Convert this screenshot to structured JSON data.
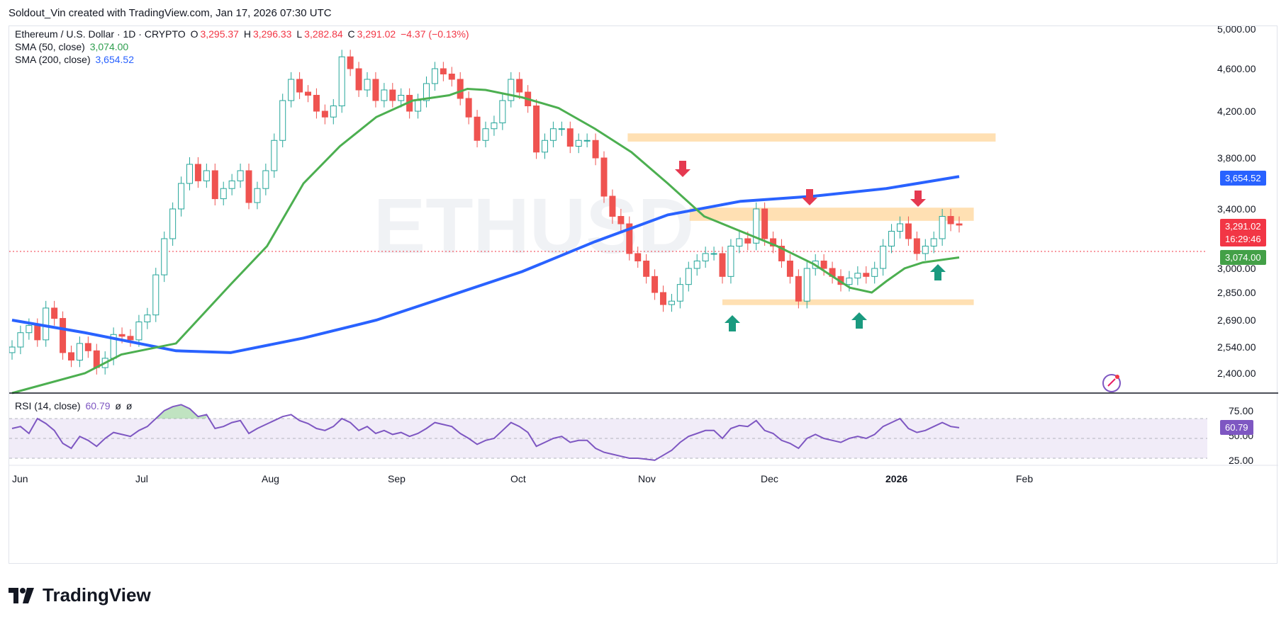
{
  "header": {
    "credit": "Soldout_Vin created with TradingView.com, Jan 17, 2026 07:30 UTC"
  },
  "legend": {
    "symbol": "Ethereum / U.S. Dollar · 1D · CRYPTO",
    "o_key": "O",
    "o_val": "3,295.37",
    "h_key": "H",
    "h_val": "3,296.33",
    "l_key": "L",
    "l_val": "3,282.84",
    "c_key": "C",
    "c_val": "3,291.02",
    "change": "−4.37 (−0.13%)",
    "sma50_label": "SMA (50, close)",
    "sma50_val": "3,074.00",
    "sma200_label": "SMA (200, close)",
    "sma200_val": "3,654.52",
    "rsi_label": "RSI (14, close)",
    "rsi_val": "60.79",
    "rsi_extra1": "ø",
    "rsi_extra2": "ø"
  },
  "watermark": "ETHUSD",
  "badges": {
    "sma200": "3,654.52",
    "price": "3,291.02",
    "countdown": "16:29:46",
    "sma50": "3,074.00",
    "rsi": "60.79"
  },
  "colors": {
    "up": "#26a69a",
    "down": "#ef5350",
    "sma50": "#4caf50",
    "sma200": "#2962ff",
    "rsi": "#7e57c2",
    "zone": "#ffcc80"
  },
  "brand": "TradingView",
  "chart_data": {
    "type": "candlestick",
    "price_axis_ticks": [
      "5,000.00",
      "4,600.00",
      "4,200.00",
      "3,800.00",
      "3,400.00",
      "3,000.00",
      "2,850.00",
      "2,690.00",
      "2,540.00",
      "2,400.00"
    ],
    "price_axis_values": [
      5000,
      4600,
      4200,
      3800,
      3400,
      3000,
      2850,
      2690,
      2540,
      2400
    ],
    "rsi_axis_ticks": [
      "75.00",
      "50.00",
      "25.00"
    ],
    "rsi_axis_values": [
      75,
      50,
      25
    ],
    "time_ticks": [
      "Jun",
      "Jul",
      "Aug",
      "Sep",
      "Oct",
      "Nov",
      "Dec",
      "2026",
      "Feb"
    ],
    "sma50": [
      [
        0,
        2300
      ],
      [
        20,
        2400
      ],
      [
        30,
        2500
      ],
      [
        45,
        2560
      ],
      [
        60,
        2900
      ],
      [
        70,
        3150
      ],
      [
        80,
        3600
      ],
      [
        90,
        3900
      ],
      [
        100,
        4150
      ],
      [
        110,
        4300
      ],
      [
        120,
        4350
      ],
      [
        125,
        4410
      ],
      [
        130,
        4400
      ],
      [
        140,
        4330
      ],
      [
        150,
        4230
      ],
      [
        160,
        4050
      ],
      [
        170,
        3850
      ],
      [
        180,
        3600
      ],
      [
        190,
        3350
      ],
      [
        200,
        3250
      ],
      [
        210,
        3150
      ],
      [
        220,
        3030
      ],
      [
        230,
        2880
      ],
      [
        236,
        2850
      ],
      [
        240,
        2920
      ],
      [
        245,
        3000
      ],
      [
        250,
        3040
      ],
      [
        260,
        3074
      ]
    ],
    "sma200": [
      [
        0,
        2690
      ],
      [
        20,
        2620
      ],
      [
        45,
        2520
      ],
      [
        60,
        2510
      ],
      [
        80,
        2590
      ],
      [
        100,
        2690
      ],
      [
        120,
        2830
      ],
      [
        140,
        2980
      ],
      [
        160,
        3180
      ],
      [
        180,
        3360
      ],
      [
        200,
        3460
      ],
      [
        220,
        3500
      ],
      [
        240,
        3560
      ],
      [
        260,
        3654
      ]
    ],
    "resistance_zones": [
      [
        169,
        270,
        3940,
        4010
      ],
      [
        186,
        264,
        3320,
        3410
      ],
      [
        195,
        264,
        2780,
        2810
      ]
    ],
    "price_close": [
      2540,
      2620,
      2660,
      2580,
      2760,
      2700,
      2510,
      2470,
      2560,
      2520,
      2430,
      2480,
      2610,
      2600,
      2580,
      2680,
      2720,
      2960,
      3200,
      3400,
      3600,
      3750,
      3620,
      3700,
      3480,
      3560,
      3620,
      3700,
      3450,
      3560,
      3700,
      3950,
      4300,
      4500,
      4380,
      4350,
      4200,
      4150,
      4250,
      4720,
      4600,
      4400,
      4500,
      4300,
      4400,
      4300,
      4350,
      4200,
      4300,
      4460,
      4600,
      4550,
      4500,
      4320,
      4150,
      3950,
      4050,
      4100,
      4300,
      4500,
      4380,
      4250,
      3850,
      3950,
      4050,
      4050,
      3900,
      3950,
      3950,
      3800,
      3500,
      3350,
      3300,
      3100,
      3050,
      2950,
      2850,
      2780,
      2800,
      2900,
      3000,
      3050,
      3100,
      3100,
      2950,
      3150,
      3200,
      3170,
      3400,
      3200,
      3150,
      3050,
      2950,
      2800,
      3000,
      3050,
      3000,
      2950,
      2900,
      2940,
      2970,
      2950,
      3000,
      3150,
      3250,
      3300,
      3200,
      3100,
      3150,
      3200,
      3350,
      3300,
      3291
    ],
    "rsi": [
      60,
      62,
      55,
      70,
      65,
      58,
      45,
      40,
      52,
      48,
      42,
      50,
      56,
      54,
      52,
      58,
      62,
      70,
      78,
      82,
      84,
      80,
      72,
      74,
      60,
      62,
      66,
      68,
      55,
      60,
      64,
      68,
      72,
      74,
      68,
      65,
      60,
      58,
      62,
      70,
      66,
      58,
      62,
      55,
      58,
      54,
      56,
      52,
      55,
      60,
      66,
      64,
      62,
      55,
      50,
      44,
      48,
      50,
      58,
      66,
      62,
      56,
      42,
      46,
      50,
      52,
      46,
      48,
      48,
      40,
      36,
      34,
      32,
      30,
      30,
      29,
      28,
      33,
      38,
      46,
      52,
      55,
      58,
      58,
      50,
      60,
      63,
      62,
      68,
      58,
      55,
      48,
      45,
      40,
      50,
      54,
      50,
      48,
      46,
      50,
      52,
      50,
      54,
      62,
      66,
      70,
      60,
      56,
      58,
      62,
      66,
      62,
      60.79
    ]
  }
}
